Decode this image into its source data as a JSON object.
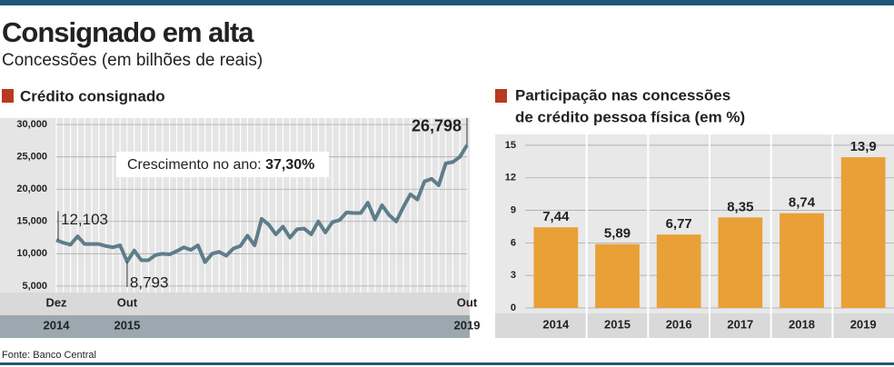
{
  "title": "Consignado em alta",
  "subtitle": "Concessões (em bilhões de reais)",
  "source": "Fonte: Banco Central",
  "chart_data": [
    {
      "type": "line",
      "title": "Crédito consignado",
      "annotation": {
        "text": "Crescimento no ano:",
        "value_label": "37,30%"
      },
      "color": "#5e7d8a",
      "categories": [
        "Dez",
        null,
        null,
        null,
        null,
        null,
        null,
        null,
        null,
        null,
        "Out",
        null,
        null,
        null,
        null,
        null,
        null,
        null,
        null,
        null,
        null,
        null,
        null,
        null,
        null,
        null,
        null,
        null,
        null,
        null,
        null,
        null,
        null,
        null,
        null,
        null,
        null,
        null,
        null,
        null,
        null,
        null,
        null,
        null,
        null,
        null,
        null,
        null,
        null,
        null,
        null,
        null,
        null,
        null,
        null,
        null,
        null,
        null,
        "Out"
      ],
      "years": [
        "2014",
        null,
        null,
        null,
        null,
        null,
        null,
        null,
        null,
        null,
        "2015",
        null,
        null,
        null,
        null,
        null,
        null,
        null,
        null,
        null,
        null,
        null,
        null,
        null,
        null,
        null,
        null,
        null,
        null,
        null,
        null,
        null,
        null,
        null,
        null,
        null,
        null,
        null,
        null,
        null,
        null,
        null,
        null,
        null,
        null,
        null,
        null,
        null,
        null,
        null,
        null,
        null,
        null,
        null,
        null,
        null,
        null,
        null,
        "2019"
      ],
      "values": [
        12103,
        11700,
        11400,
        12700,
        11500,
        11500,
        11500,
        11200,
        11000,
        11300,
        8793,
        10500,
        9000,
        9000,
        9800,
        10000,
        9900,
        10400,
        11000,
        10600,
        11300,
        8700,
        10000,
        10300,
        9700,
        10800,
        11200,
        12800,
        11300,
        15400,
        14500,
        13000,
        14200,
        12500,
        13800,
        13900,
        13000,
        15000,
        13300,
        14900,
        15200,
        16400,
        16300,
        16300,
        17900,
        15300,
        17500,
        16000,
        15000,
        17200,
        19200,
        18400,
        21200,
        21600,
        20600,
        24000,
        24200,
        25000,
        26798
      ],
      "value_labels": [
        "12,103",
        null,
        null,
        null,
        null,
        null,
        null,
        null,
        null,
        null,
        "8,793",
        null,
        null,
        null,
        null,
        null,
        null,
        null,
        null,
        null,
        null,
        null,
        null,
        null,
        null,
        null,
        null,
        null,
        null,
        null,
        null,
        null,
        null,
        null,
        null,
        null,
        null,
        null,
        null,
        null,
        null,
        null,
        null,
        null,
        null,
        null,
        null,
        null,
        null,
        null,
        null,
        null,
        null,
        null,
        null,
        null,
        null,
        null,
        "26,798"
      ],
      "ylim": [
        4000,
        31000
      ],
      "yticks": [
        {
          "value": 5000,
          "label": "5,000"
        },
        {
          "value": 10000,
          "label": "10,000"
        },
        {
          "value": 15000,
          "label": "15,000"
        },
        {
          "value": 20000,
          "label": "20,000"
        },
        {
          "value": 25000,
          "label": "25,000"
        },
        {
          "value": 30000,
          "label": "30,000"
        }
      ],
      "grid": true
    },
    {
      "type": "bar",
      "title": [
        "Participação nas concessões",
        "de crédito pessoa física (em %)"
      ],
      "color": "#e9a037",
      "categories": [
        "2014",
        "2015",
        "2016",
        "2017",
        "2018",
        "2019"
      ],
      "values": [
        7.44,
        5.89,
        6.77,
        8.35,
        8.74,
        13.9
      ],
      "value_labels": [
        "7,44",
        "5,89",
        "6,77",
        "8,35",
        "8,74",
        "13,9"
      ],
      "ylim": [
        0,
        16
      ],
      "yticks": [
        0,
        3,
        6,
        9,
        12,
        15
      ],
      "grid": true
    }
  ]
}
